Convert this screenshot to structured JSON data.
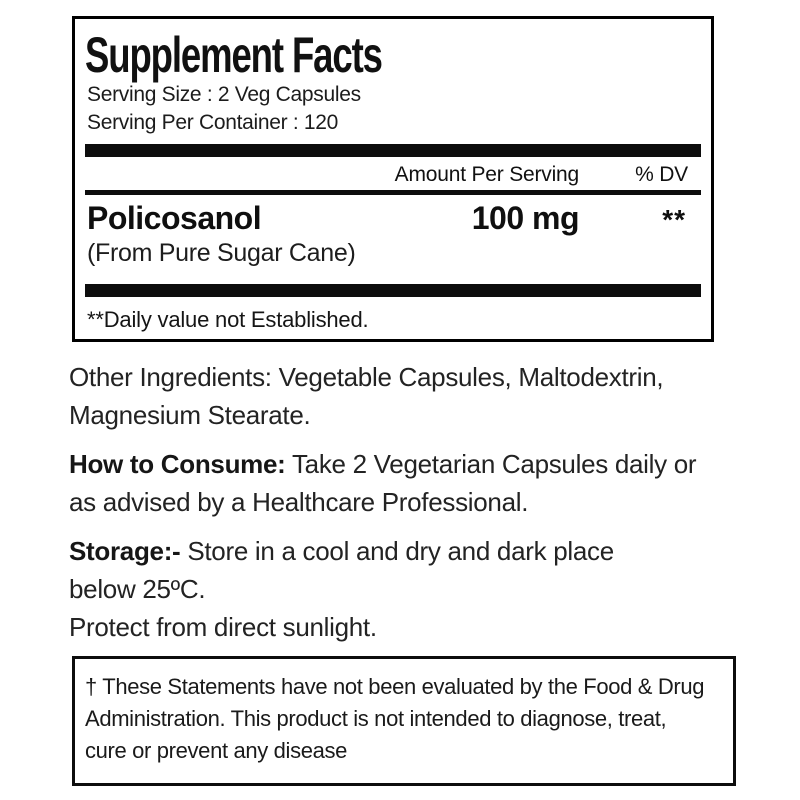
{
  "label": {
    "colors": {
      "background": "#ffffff",
      "ink": "#1a1a1a",
      "bar": "#0d0d0d",
      "border": "#000000"
    },
    "facts": {
      "title": "Supplement Facts",
      "serving_size": "Serving Size : 2 Veg Capsules",
      "servings_per_container": "Serving Per Container : 120",
      "columns": {
        "amount": "Amount Per Serving",
        "dv": "% DV"
      },
      "rows": [
        {
          "name": "Policosanol",
          "amount": "100 mg",
          "dv": "**",
          "source": "(From Pure Sugar Cane)"
        }
      ],
      "footnote": "**Daily value not Established."
    },
    "paragraphs": {
      "other_ingredients": {
        "lead": "",
        "body": "Other Ingredients: Vegetable Capsules, Maltodextrin,\nMagnesium Stearate."
      },
      "how_to_consume": {
        "lead": "How to Consume:",
        "body": " Take 2 Vegetarian Capsules daily or\nas advised by a Healthcare Professional."
      },
      "storage": {
        "lead": "Storage:-",
        "body": " Store in a cool and dry and dark place\nbelow 25ºC.\nProtect from direct sunlight."
      }
    },
    "disclaimer": "† These Statements have not been evaluated by the Food & Drug\nAdministration. This product is not intended to diagnose, treat,\ncure or prevent any disease"
  }
}
